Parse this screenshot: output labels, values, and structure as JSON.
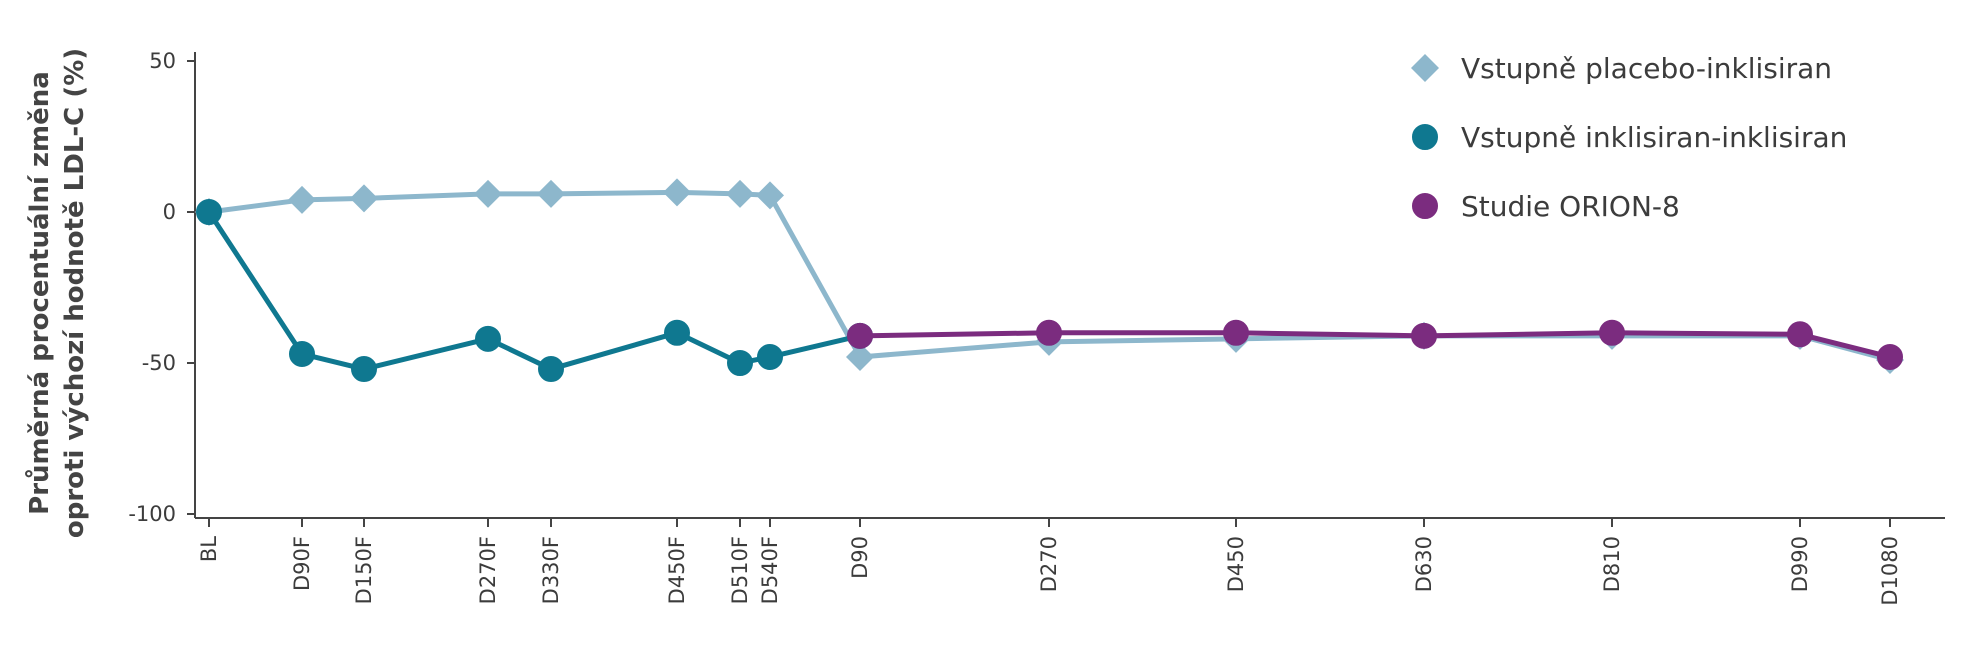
{
  "chart_data": {
    "type": "line",
    "title": "",
    "xlabel": "",
    "ylabel": [
      "Průměrná procentuální změna",
      "oproti výchozí hodnotě LDL-C (%)"
    ],
    "ylim": [
      -105,
      55
    ],
    "yticks": [
      50,
      0,
      -50,
      -100
    ],
    "grid": false,
    "legend_position": "top-right",
    "x_categories": [
      "BL",
      "D90F",
      "D150F",
      "D270F",
      "D330F",
      "D450F",
      "D510F",
      "D540F",
      "D90",
      "D270",
      "D450",
      "D630",
      "D810",
      "D990",
      "D1080"
    ],
    "series": [
      {
        "name": "Vstupně placebo-inklisiran",
        "color": "#8db7cc",
        "marker": "diamond",
        "points": [
          {
            "x": "BL",
            "y": 0
          },
          {
            "x": "D90F",
            "y": 4
          },
          {
            "x": "D150F",
            "y": 4.5
          },
          {
            "x": "D270F",
            "y": 6
          },
          {
            "x": "D330F",
            "y": 6
          },
          {
            "x": "D450F",
            "y": 6.5
          },
          {
            "x": "D510F",
            "y": 6
          },
          {
            "x": "D540F",
            "y": 5.5
          },
          {
            "x": "D90",
            "y": -48
          },
          {
            "x": "D270",
            "y": -43
          },
          {
            "x": "D450",
            "y": -42
          },
          {
            "x": "D630",
            "y": -41
          },
          {
            "x": "D810",
            "y": -41
          },
          {
            "x": "D990",
            "y": -41
          },
          {
            "x": "D1080",
            "y": -49
          }
        ]
      },
      {
        "name": "Vstupně inklisiran-inklisiran",
        "color": "#0f7890",
        "marker": "circle",
        "points": [
          {
            "x": "BL",
            "y": 0
          },
          {
            "x": "D90F",
            "y": -47
          },
          {
            "x": "D150F",
            "y": -52
          },
          {
            "x": "D270F",
            "y": -42
          },
          {
            "x": "D330F",
            "y": -52
          },
          {
            "x": "D450F",
            "y": -40
          },
          {
            "x": "D510F",
            "y": -50
          },
          {
            "x": "D540F",
            "y": -48
          },
          {
            "x": "D90",
            "y": -41
          }
        ]
      },
      {
        "name": "Studie ORION-8",
        "color": "#7b2c7f",
        "marker": "circle",
        "points": [
          {
            "x": "D90",
            "y": -41
          },
          {
            "x": "D270",
            "y": -40
          },
          {
            "x": "D450",
            "y": -40
          },
          {
            "x": "D630",
            "y": -41
          },
          {
            "x": "D810",
            "y": -40
          },
          {
            "x": "D990",
            "y": -40.5
          },
          {
            "x": "D1080",
            "y": -48
          }
        ]
      }
    ]
  }
}
